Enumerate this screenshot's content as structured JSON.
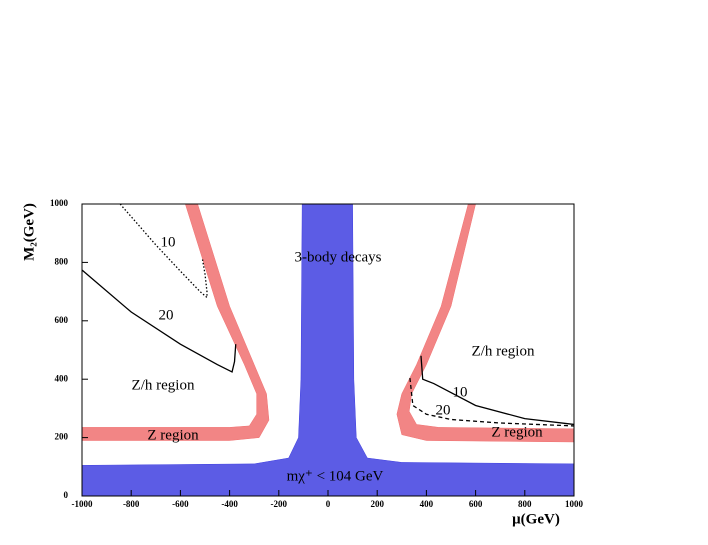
{
  "chart_data": {
    "type": "region",
    "xlabel": "μ(GeV)",
    "ylabel": "M₂(GeV)",
    "xlim": [
      -1000,
      1000
    ],
    "ylim": [
      0,
      1000
    ],
    "xticks": [
      -1000,
      -800,
      -600,
      -400,
      -200,
      0,
      200,
      400,
      600,
      800,
      1000
    ],
    "yticks": [
      0,
      200,
      400,
      600,
      800,
      1000
    ],
    "series": [
      {
        "color": "#4040e0",
        "fill": true,
        "x": [
          -1000,
          -1000,
          -300,
          -160,
          -120,
          -110,
          -105,
          100,
          105,
          115,
          160,
          300,
          1000,
          1000
        ],
        "y": [
          0,
          105,
          110,
          130,
          200,
          400,
          1000,
          1000,
          400,
          200,
          130,
          115,
          110,
          0
        ]
      },
      {
        "color": "#f07070",
        "fill": true,
        "x": [
          -1000,
          -400,
          -280,
          -240,
          -250,
          -300,
          -400,
          -530,
          -580,
          -450,
          -340,
          -290,
          -290,
          -320,
          -400,
          -1000
        ],
        "y": [
          190,
          190,
          200,
          260,
          350,
          450,
          650,
          1000,
          1000,
          650,
          450,
          350,
          280,
          240,
          235,
          235
        ]
      },
      {
        "color": "#f07070",
        "fill": true,
        "x": [
          1000,
          400,
          300,
          280,
          300,
          360,
          460,
          570,
          600,
          500,
          400,
          340,
          330,
          360,
          450,
          1000
        ],
        "y": [
          185,
          190,
          210,
          280,
          350,
          450,
          650,
          1000,
          1000,
          650,
          450,
          350,
          290,
          245,
          235,
          230
        ]
      },
      {
        "color": "#000000",
        "style": "dotted",
        "x": [
          -845,
          -700,
          -600,
          -520,
          -492,
          -492,
          -500,
          -510
        ],
        "y": [
          1000,
          860,
          770,
          700,
          680,
          700,
          760,
          810
        ]
      },
      {
        "color": "#000000",
        "style": "solid",
        "x": [
          -1000,
          -800,
          -600,
          -450,
          -390,
          -380,
          -375
        ],
        "y": [
          774,
          630,
          520,
          450,
          425,
          460,
          520
        ]
      },
      {
        "color": "#000000",
        "style": "solid",
        "x": [
          378,
          385,
          430,
          600,
          800,
          1000
        ],
        "y": [
          480,
          400,
          385,
          310,
          265,
          245
        ]
      },
      {
        "color": "#000000",
        "style": "dashed",
        "x": [
          333,
          345,
          400,
          500,
          700,
          1000
        ],
        "y": [
          404,
          310,
          280,
          262,
          250,
          240
        ]
      }
    ],
    "annotations": [
      "10",
      "20",
      "3-body decays",
      "Z/h region",
      "Z/h region",
      "10",
      "20",
      "Z region",
      "Z region",
      "mχ⁺ < 104 GeV"
    ]
  }
}
